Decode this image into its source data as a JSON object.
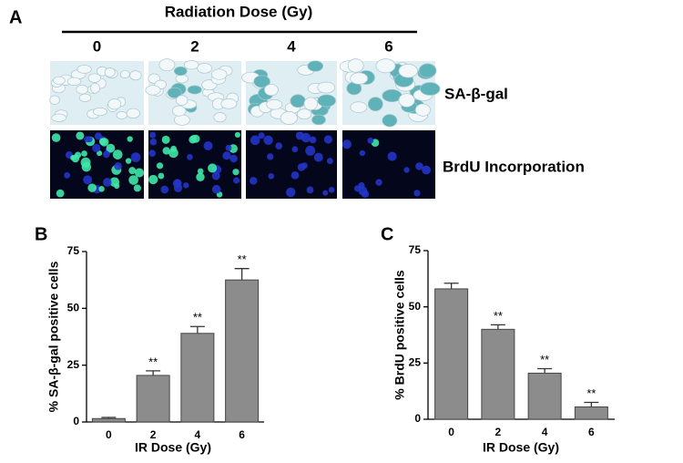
{
  "panel_a": {
    "label": "A",
    "title": "Radiation Dose (Gy)",
    "doses": [
      "0",
      "2",
      "4",
      "6"
    ],
    "rows": [
      "SA-β-gal",
      "BrdU Incorporation"
    ]
  },
  "chart_data": [
    {
      "type": "bar",
      "label": "B",
      "x_label": "IR Dose (Gy)",
      "y_label": "% SA-β-gal positive cells",
      "categories": [
        "0",
        "2",
        "4",
        "6"
      ],
      "values": [
        1.5,
        20.5,
        39,
        62.5
      ],
      "errors": [
        0.5,
        2,
        3,
        5
      ],
      "annotations": [
        null,
        "**",
        "**",
        "**"
      ],
      "color": "#8c8c8c",
      "ylim": [
        0,
        75
      ],
      "yticks": [
        0,
        25,
        50,
        75
      ]
    },
    {
      "type": "bar",
      "label": "C",
      "x_label": "IR Dose (Gy)",
      "y_label": "% BrdU positive cells",
      "categories": [
        "0",
        "2",
        "4",
        "6"
      ],
      "values": [
        58,
        40,
        20.5,
        5.5
      ],
      "errors": [
        2.5,
        2,
        2,
        2
      ],
      "annotations": [
        null,
        "**",
        "**",
        "**"
      ],
      "color": "#8c8c8c",
      "ylim": [
        0,
        75
      ],
      "yticks": [
        0,
        25,
        50,
        75
      ]
    }
  ]
}
